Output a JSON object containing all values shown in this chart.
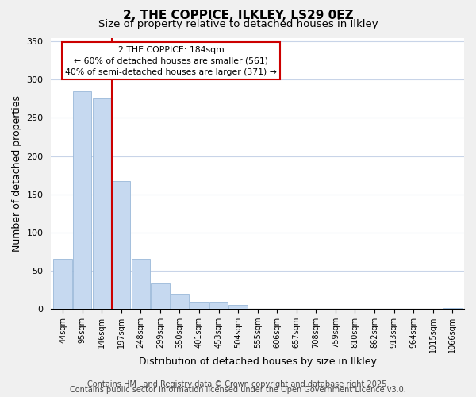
{
  "title": "2, THE COPPICE, ILKLEY, LS29 0EZ",
  "subtitle": "Size of property relative to detached houses in Ilkley",
  "xlabel": "Distribution of detached houses by size in Ilkley",
  "ylabel": "Number of detached properties",
  "bar_labels": [
    "44sqm",
    "95sqm",
    "146sqm",
    "197sqm",
    "248sqm",
    "299sqm",
    "350sqm",
    "401sqm",
    "453sqm",
    "504sqm",
    "555sqm",
    "606sqm",
    "657sqm",
    "708sqm",
    "759sqm",
    "810sqm",
    "862sqm",
    "913sqm",
    "964sqm",
    "1015sqm",
    "1066sqm"
  ],
  "bar_values": [
    65,
    285,
    275,
    167,
    65,
    33,
    20,
    9,
    9,
    5,
    0,
    0,
    0,
    0,
    0,
    0,
    0,
    0,
    0,
    0,
    1
  ],
  "bar_color": "#c6d9f0",
  "bar_edge_color": "#9ab8d8",
  "vline_color": "#cc0000",
  "annotation_title": "2 THE COPPICE: 184sqm",
  "annotation_line1": "← 60% of detached houses are smaller (561)",
  "annotation_line2": "40% of semi-detached houses are larger (371) →",
  "annotation_box_color": "#ffffff",
  "annotation_box_edge": "#cc0000",
  "footer1": "Contains HM Land Registry data © Crown copyright and database right 2025.",
  "footer2": "Contains public sector information licensed under the Open Government Licence v3.0.",
  "ylim": [
    0,
    355
  ],
  "background_color": "#f0f0f0",
  "plot_background": "#ffffff",
  "grid_color": "#c8d4e8",
  "title_fontsize": 11,
  "subtitle_fontsize": 9.5,
  "axis_label_fontsize": 9,
  "tick_fontsize": 7,
  "footer_fontsize": 7,
  "annotation_fontsize": 7.8
}
